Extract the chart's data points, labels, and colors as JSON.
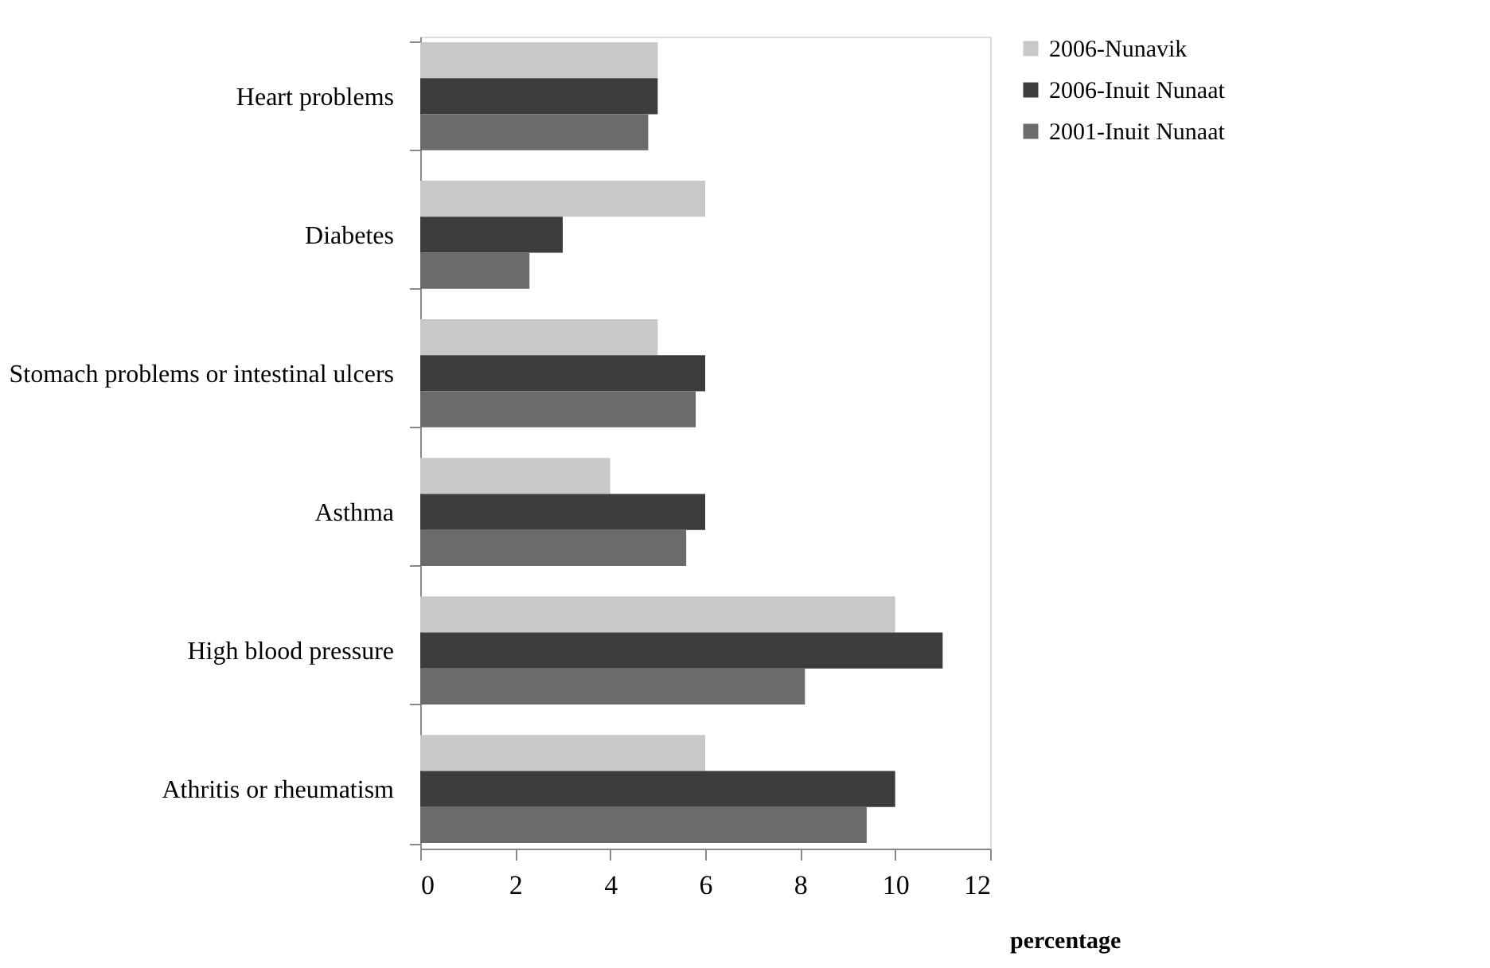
{
  "chart_data": {
    "type": "bar",
    "orientation": "horizontal",
    "xlabel": "percentage",
    "categories": [
      "Heart problems",
      "Diabetes",
      "Stomach problems or intestinal ulcers",
      "Asthma",
      "High blood pressure",
      "Athritis or rheumatism"
    ],
    "series": [
      {
        "name": "2006-Nunavik",
        "color": "#c8c8c8",
        "values": [
          5,
          6,
          5,
          4,
          10,
          6
        ]
      },
      {
        "name": "2006-Inuit Nunaat",
        "color": "#3c3c3c",
        "values": [
          5,
          3,
          6,
          6,
          11,
          10
        ]
      },
      {
        "name": "2001-Inuit Nunaat",
        "color": "#6b6b6b",
        "values": [
          4.8,
          2.3,
          5.8,
          5.6,
          8.1,
          9.4
        ]
      }
    ],
    "xlim": [
      0,
      12
    ],
    "xticks": [
      0,
      2,
      4,
      6,
      8,
      10,
      12
    ],
    "grid": false,
    "legend": "right"
  }
}
